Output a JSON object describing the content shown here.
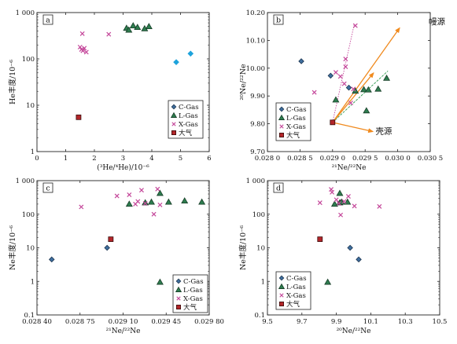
{
  "colors": {
    "c_gas_fill": "#3f6f9f",
    "c_gas_stroke": "#1c3550",
    "l_gas_fill": "#2e7d4f",
    "l_gas_stroke": "#173d27",
    "x_gas": "#c4479a",
    "air_fill": "#b3262a",
    "air_stroke": "#3a0d0d",
    "cyan": "#1ea3dc",
    "mantle_arrow": "#f08a1e",
    "crust_arrow": "#f08a1e",
    "mix_line_magenta": "#c4479a",
    "mix_line_green": "#2e9a4e"
  },
  "chart_data": [
    {
      "id": "a",
      "panel_label": "a",
      "type": "scatter",
      "xlabel": "(³He/⁴He)/10⁻⁶",
      "ylabel": "He丰度/10⁻⁶",
      "xlim": [
        0,
        6
      ],
      "ylim": [
        1,
        1000
      ],
      "yscale": "log",
      "xticks": [
        0,
        1,
        2,
        3,
        4,
        5,
        6
      ],
      "xtick_labels": [
        "0",
        "1",
        "2",
        "3",
        "4",
        "5",
        "6"
      ],
      "yticks": [
        1,
        10,
        100,
        1000
      ],
      "ytick_labels": [
        "1",
        "10",
        "100",
        "1 000"
      ],
      "legend_position": "lower-right",
      "legend": [
        "C-Gas",
        "L-Gas",
        "X-Gas",
        "大气"
      ],
      "series": [
        {
          "name": "C-Gas",
          "marker": "diamond",
          "points": [
            [
              4.85,
              85
            ],
            [
              5.35,
              130
            ]
          ]
        },
        {
          "name": "L-Gas",
          "marker": "triangle",
          "points": [
            [
              3.12,
              460
            ],
            [
              3.2,
              420
            ],
            [
              3.35,
              520
            ],
            [
              3.5,
              480
            ],
            [
              3.75,
              450
            ],
            [
              3.9,
              500
            ]
          ]
        },
        {
          "name": "X-Gas",
          "marker": "cross",
          "points": [
            [
              1.5,
              180
            ],
            [
              1.55,
              160
            ],
            [
              1.6,
              150
            ],
            [
              1.65,
              170
            ],
            [
              1.72,
              140
            ],
            [
              1.58,
              350
            ],
            [
              2.5,
              340
            ]
          ]
        },
        {
          "name": "大气",
          "marker": "square",
          "points": [
            [
              1.45,
              5.5
            ]
          ]
        }
      ]
    },
    {
      "id": "b",
      "panel_label": "b",
      "type": "scatter",
      "xlabel": "²¹Ne/²²Ne",
      "ylabel": "²⁰Ne/²²Ne",
      "xlim": [
        0.028,
        0.0305
      ],
      "ylim": [
        9.7,
        10.2
      ],
      "xticks": [
        0.028,
        0.0285,
        0.029,
        0.0295,
        0.03,
        0.0305
      ],
      "xtick_labels": [
        "0.028 0",
        "0.028 5",
        "0.029 0",
        "0.029 5",
        "0.030 0",
        "0.030 5"
      ],
      "yticks": [
        9.7,
        9.8,
        9.9,
        10.0,
        10.1,
        10.2
      ],
      "ytick_labels": [
        "9.70",
        "9.80",
        "9.90",
        "10.00",
        "10.10",
        "10.20"
      ],
      "legend_position": "lower-left",
      "legend": [
        "C-Gas",
        "L-Gas",
        "X-Gas",
        "大气"
      ],
      "annotations": [
        {
          "text": "幔源"
        },
        {
          "text": "壳源"
        }
      ],
      "series": [
        {
          "name": "C-Gas",
          "marker": "diamond",
          "points": [
            [
              0.02852,
              10.025
            ],
            [
              0.02897,
              9.973
            ],
            [
              0.02925,
              9.93
            ]
          ]
        },
        {
          "name": "L-Gas",
          "marker": "triangle",
          "points": [
            [
              0.02905,
              9.886
            ],
            [
              0.02935,
              9.918
            ],
            [
              0.02948,
              9.923
            ],
            [
              0.02955,
              9.922
            ],
            [
              0.0297,
              9.925
            ],
            [
              0.02983,
              9.964
            ],
            [
              0.02952,
              9.847
            ]
          ]
        },
        {
          "name": "X-Gas",
          "marker": "cross",
          "points": [
            [
              0.02872,
              9.913
            ],
            [
              0.02905,
              9.985
            ],
            [
              0.02912,
              9.97
            ],
            [
              0.02918,
              9.944
            ],
            [
              0.0292,
              10.033
            ],
            [
              0.0292,
              10.005
            ],
            [
              0.02932,
              9.925
            ],
            [
              0.02928,
              9.875
            ],
            [
              0.02935,
              10.153
            ]
          ]
        },
        {
          "name": "大气",
          "marker": "square",
          "points": [
            [
              0.029,
              9.805
            ]
          ]
        }
      ]
    },
    {
      "id": "c",
      "panel_label": "c",
      "type": "scatter",
      "xlabel": "²¹Ne/²²Ne",
      "ylabel": "Ne丰度/10⁻⁶",
      "xlim": [
        0.0284,
        0.0298
      ],
      "ylim": [
        0.1,
        1000
      ],
      "yscale": "log",
      "xticks": [
        0.0284,
        0.02875,
        0.0291,
        0.02945,
        0.0298
      ],
      "xtick_labels": [
        "0.028 40",
        "0.028 75",
        "0.029 10",
        "0.029 45",
        "0.029 80"
      ],
      "yticks": [
        0.1,
        1,
        10,
        100,
        1000
      ],
      "ytick_labels": [
        "0.1",
        "1",
        "10",
        "100",
        "1 000"
      ],
      "legend_position": "lower-right",
      "legend": [
        "C-Gas",
        "L-Gas",
        "X-Gas",
        "大气"
      ],
      "series": [
        {
          "name": "C-Gas",
          "marker": "diamond",
          "points": [
            [
              0.02852,
              4.5
            ],
            [
              0.02897,
              10
            ]
          ]
        },
        {
          "name": "L-Gas",
          "marker": "triangle",
          "points": [
            [
              0.02915,
              200
            ],
            [
              0.02928,
              220
            ],
            [
              0.02933,
              230
            ],
            [
              0.0294,
              420
            ],
            [
              0.02947,
              230
            ],
            [
              0.0296,
              250
            ],
            [
              0.02974,
              230
            ],
            [
              0.0294,
              0.95
            ]
          ]
        },
        {
          "name": "X-Gas",
          "marker": "cross",
          "points": [
            [
              0.02876,
              165
            ],
            [
              0.02905,
              350
            ],
            [
              0.02915,
              380
            ],
            [
              0.0292,
              200
            ],
            [
              0.02922,
              240
            ],
            [
              0.02925,
              520
            ],
            [
              0.02928,
              210
            ],
            [
              0.02935,
              100
            ],
            [
              0.02938,
              560
            ],
            [
              0.0294,
              190
            ]
          ]
        },
        {
          "name": "大气",
          "marker": "square",
          "points": [
            [
              0.029,
              18
            ]
          ]
        }
      ]
    },
    {
      "id": "d",
      "panel_label": "d",
      "type": "scatter",
      "xlabel": "²⁰Ne/²²Ne",
      "ylabel": "Ne丰度/10⁻⁶",
      "xlim": [
        9.5,
        10.5
      ],
      "ylim": [
        0.1,
        1000
      ],
      "yscale": "log",
      "xticks": [
        9.5,
        9.7,
        9.9,
        10.1,
        10.3,
        10.5
      ],
      "xtick_labels": [
        "9.5",
        "9.7",
        "9.9",
        "10.1",
        "10.3",
        "10.5"
      ],
      "yticks": [
        0.1,
        1,
        10,
        100,
        1000
      ],
      "ytick_labels": [
        "0.1",
        "1",
        "10",
        "100",
        "1 000"
      ],
      "legend_position": "lower-left",
      "legend": [
        "C-Gas",
        "L-Gas",
        "X-Gas",
        "大气"
      ],
      "series": [
        {
          "name": "C-Gas",
          "marker": "diamond",
          "points": [
            [
              9.98,
              10
            ],
            [
              10.03,
              4.5
            ]
          ]
        },
        {
          "name": "L-Gas",
          "marker": "triangle",
          "points": [
            [
              9.89,
              200
            ],
            [
              9.92,
              220
            ],
            [
              9.92,
              420
            ],
            [
              9.93,
              230
            ],
            [
              9.965,
              230
            ],
            [
              9.85,
              0.95
            ]
          ]
        },
        {
          "name": "X-Gas",
          "marker": "cross",
          "points": [
            [
              9.805,
              220
            ],
            [
              9.87,
              550
            ],
            [
              9.875,
              450
            ],
            [
              9.9,
              270
            ],
            [
              9.915,
              210
            ],
            [
              9.925,
              95
            ],
            [
              9.945,
              240
            ],
            [
              9.97,
              340
            ],
            [
              10.005,
              175
            ],
            [
              10.15,
              170
            ]
          ]
        },
        {
          "name": "大气",
          "marker": "square",
          "points": [
            [
              9.805,
              18
            ]
          ]
        }
      ]
    }
  ]
}
